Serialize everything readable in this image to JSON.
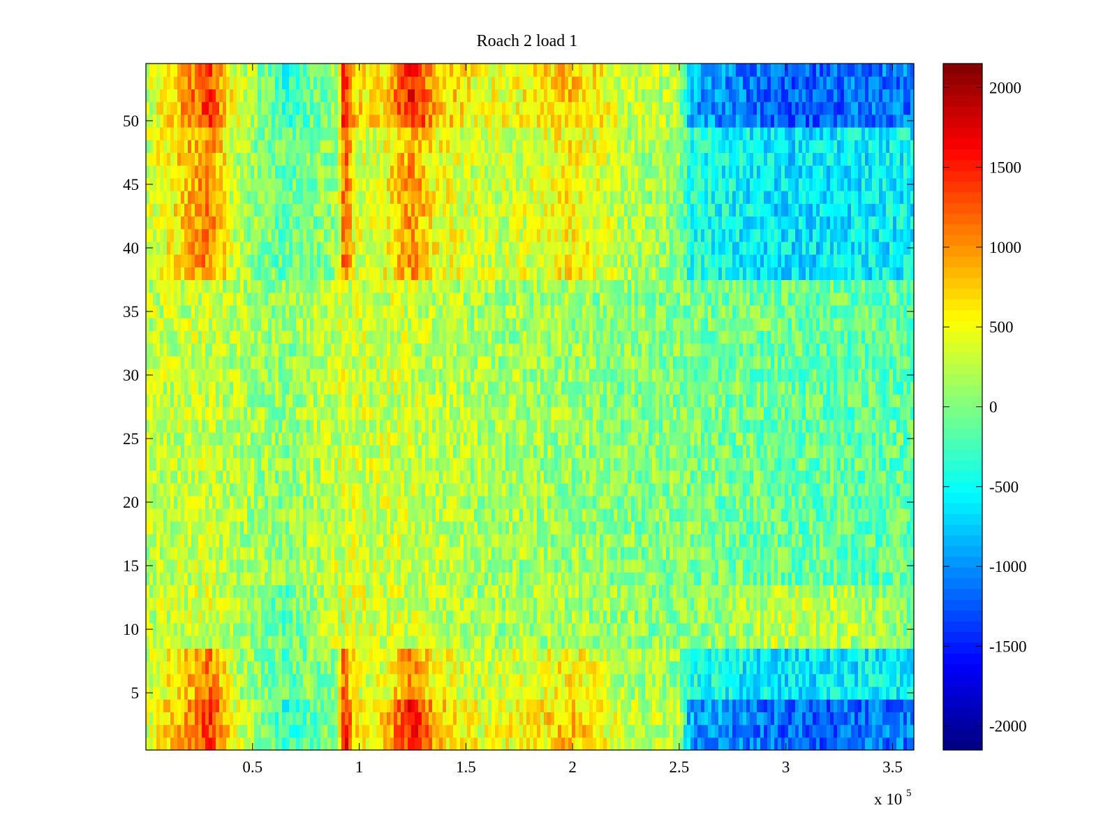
{
  "chart_data": {
    "type": "heatmap",
    "title": "Roach 2 load 1",
    "xlabel": "",
    "ylabel": "",
    "x_multiplier_label": {
      "prefix": "x 10",
      "exponent": "5"
    },
    "xlim": [
      0,
      3.6
    ],
    "ylim": [
      0.5,
      54.5
    ],
    "x_scale": 100000,
    "x_ticks": [
      {
        "value": 0.5,
        "label": "0.5"
      },
      {
        "value": 1,
        "label": "1"
      },
      {
        "value": 1.5,
        "label": "1.5"
      },
      {
        "value": 2,
        "label": "2"
      },
      {
        "value": 2.5,
        "label": "2.5"
      },
      {
        "value": 3,
        "label": "3"
      },
      {
        "value": 3.5,
        "label": "3.5"
      }
    ],
    "y_ticks": [
      {
        "value": 5,
        "label": "5"
      },
      {
        "value": 10,
        "label": "10"
      },
      {
        "value": 15,
        "label": "15"
      },
      {
        "value": 20,
        "label": "20"
      },
      {
        "value": 25,
        "label": "25"
      },
      {
        "value": 30,
        "label": "30"
      },
      {
        "value": 35,
        "label": "35"
      },
      {
        "value": 40,
        "label": "40"
      },
      {
        "value": 45,
        "label": "45"
      },
      {
        "value": 50,
        "label": "50"
      }
    ],
    "rows": 54,
    "colormap": "jet",
    "clim": [
      -2150,
      2150
    ],
    "colorbar": {
      "ticks": [
        {
          "value": 2000,
          "label": "2000"
        },
        {
          "value": 1500,
          "label": "1500"
        },
        {
          "value": 1000,
          "label": "1000"
        },
        {
          "value": 500,
          "label": "500"
        },
        {
          "value": 0,
          "label": "0"
        },
        {
          "value": -500,
          "label": "-500"
        },
        {
          "value": -1000,
          "label": "-1000"
        },
        {
          "value": -1500,
          "label": "-1500"
        },
        {
          "value": -2000,
          "label": "-2000"
        }
      ]
    },
    "row_groups": [
      {
        "rows": [
          1,
          4
        ],
        "profile": "high"
      },
      {
        "rows": [
          5,
          8
        ],
        "profile": "mid"
      },
      {
        "rows": [
          9,
          13
        ],
        "profile": "low"
      },
      {
        "rows": [
          14,
          37
        ],
        "profile": "flat"
      },
      {
        "rows": [
          38,
          49
        ],
        "profile": "mid"
      },
      {
        "rows": [
          50,
          54
        ],
        "profile": "high"
      }
    ],
    "profiles": {
      "high": [
        [
          0,
          300
        ],
        [
          0.17,
          900
        ],
        [
          0.3,
          1400
        ],
        [
          0.42,
          400
        ],
        [
          0.65,
          -350
        ],
        [
          0.9,
          100
        ],
        [
          0.93,
          1700
        ],
        [
          0.98,
          700
        ],
        [
          1.1,
          600
        ],
        [
          1.25,
          1600
        ],
        [
          1.36,
          800
        ],
        [
          1.6,
          400
        ],
        [
          1.85,
          600
        ],
        [
          2.0,
          800
        ],
        [
          2.25,
          300
        ],
        [
          2.5,
          200
        ],
        [
          2.55,
          -900
        ],
        [
          3.0,
          -1200
        ],
        [
          3.6,
          -1100
        ]
      ],
      "mid": [
        [
          0,
          300
        ],
        [
          0.17,
          700
        ],
        [
          0.3,
          1100
        ],
        [
          0.42,
          200
        ],
        [
          0.65,
          -150
        ],
        [
          0.9,
          100
        ],
        [
          0.93,
          1300
        ],
        [
          0.98,
          400
        ],
        [
          1.1,
          400
        ],
        [
          1.25,
          1000
        ],
        [
          1.36,
          500
        ],
        [
          1.6,
          300
        ],
        [
          1.85,
          400
        ],
        [
          2.0,
          600
        ],
        [
          2.25,
          200
        ],
        [
          2.5,
          100
        ],
        [
          2.55,
          -400
        ],
        [
          3.0,
          -650
        ],
        [
          3.6,
          -550
        ]
      ],
      "low": [
        [
          0,
          250
        ],
        [
          0.3,
          350
        ],
        [
          0.65,
          -150
        ],
        [
          0.93,
          400
        ],
        [
          1.25,
          300
        ],
        [
          1.6,
          150
        ],
        [
          2.0,
          150
        ],
        [
          2.5,
          0
        ],
        [
          2.8,
          150
        ],
        [
          3.0,
          300
        ],
        [
          3.4,
          150
        ],
        [
          3.6,
          0
        ]
      ],
      "flat": [
        [
          0,
          250
        ],
        [
          0.3,
          300
        ],
        [
          0.65,
          50
        ],
        [
          0.93,
          350
        ],
        [
          1.25,
          300
        ],
        [
          1.6,
          150
        ],
        [
          2.0,
          100
        ],
        [
          2.5,
          0
        ],
        [
          3.0,
          -100
        ],
        [
          3.6,
          -150
        ]
      ]
    }
  }
}
